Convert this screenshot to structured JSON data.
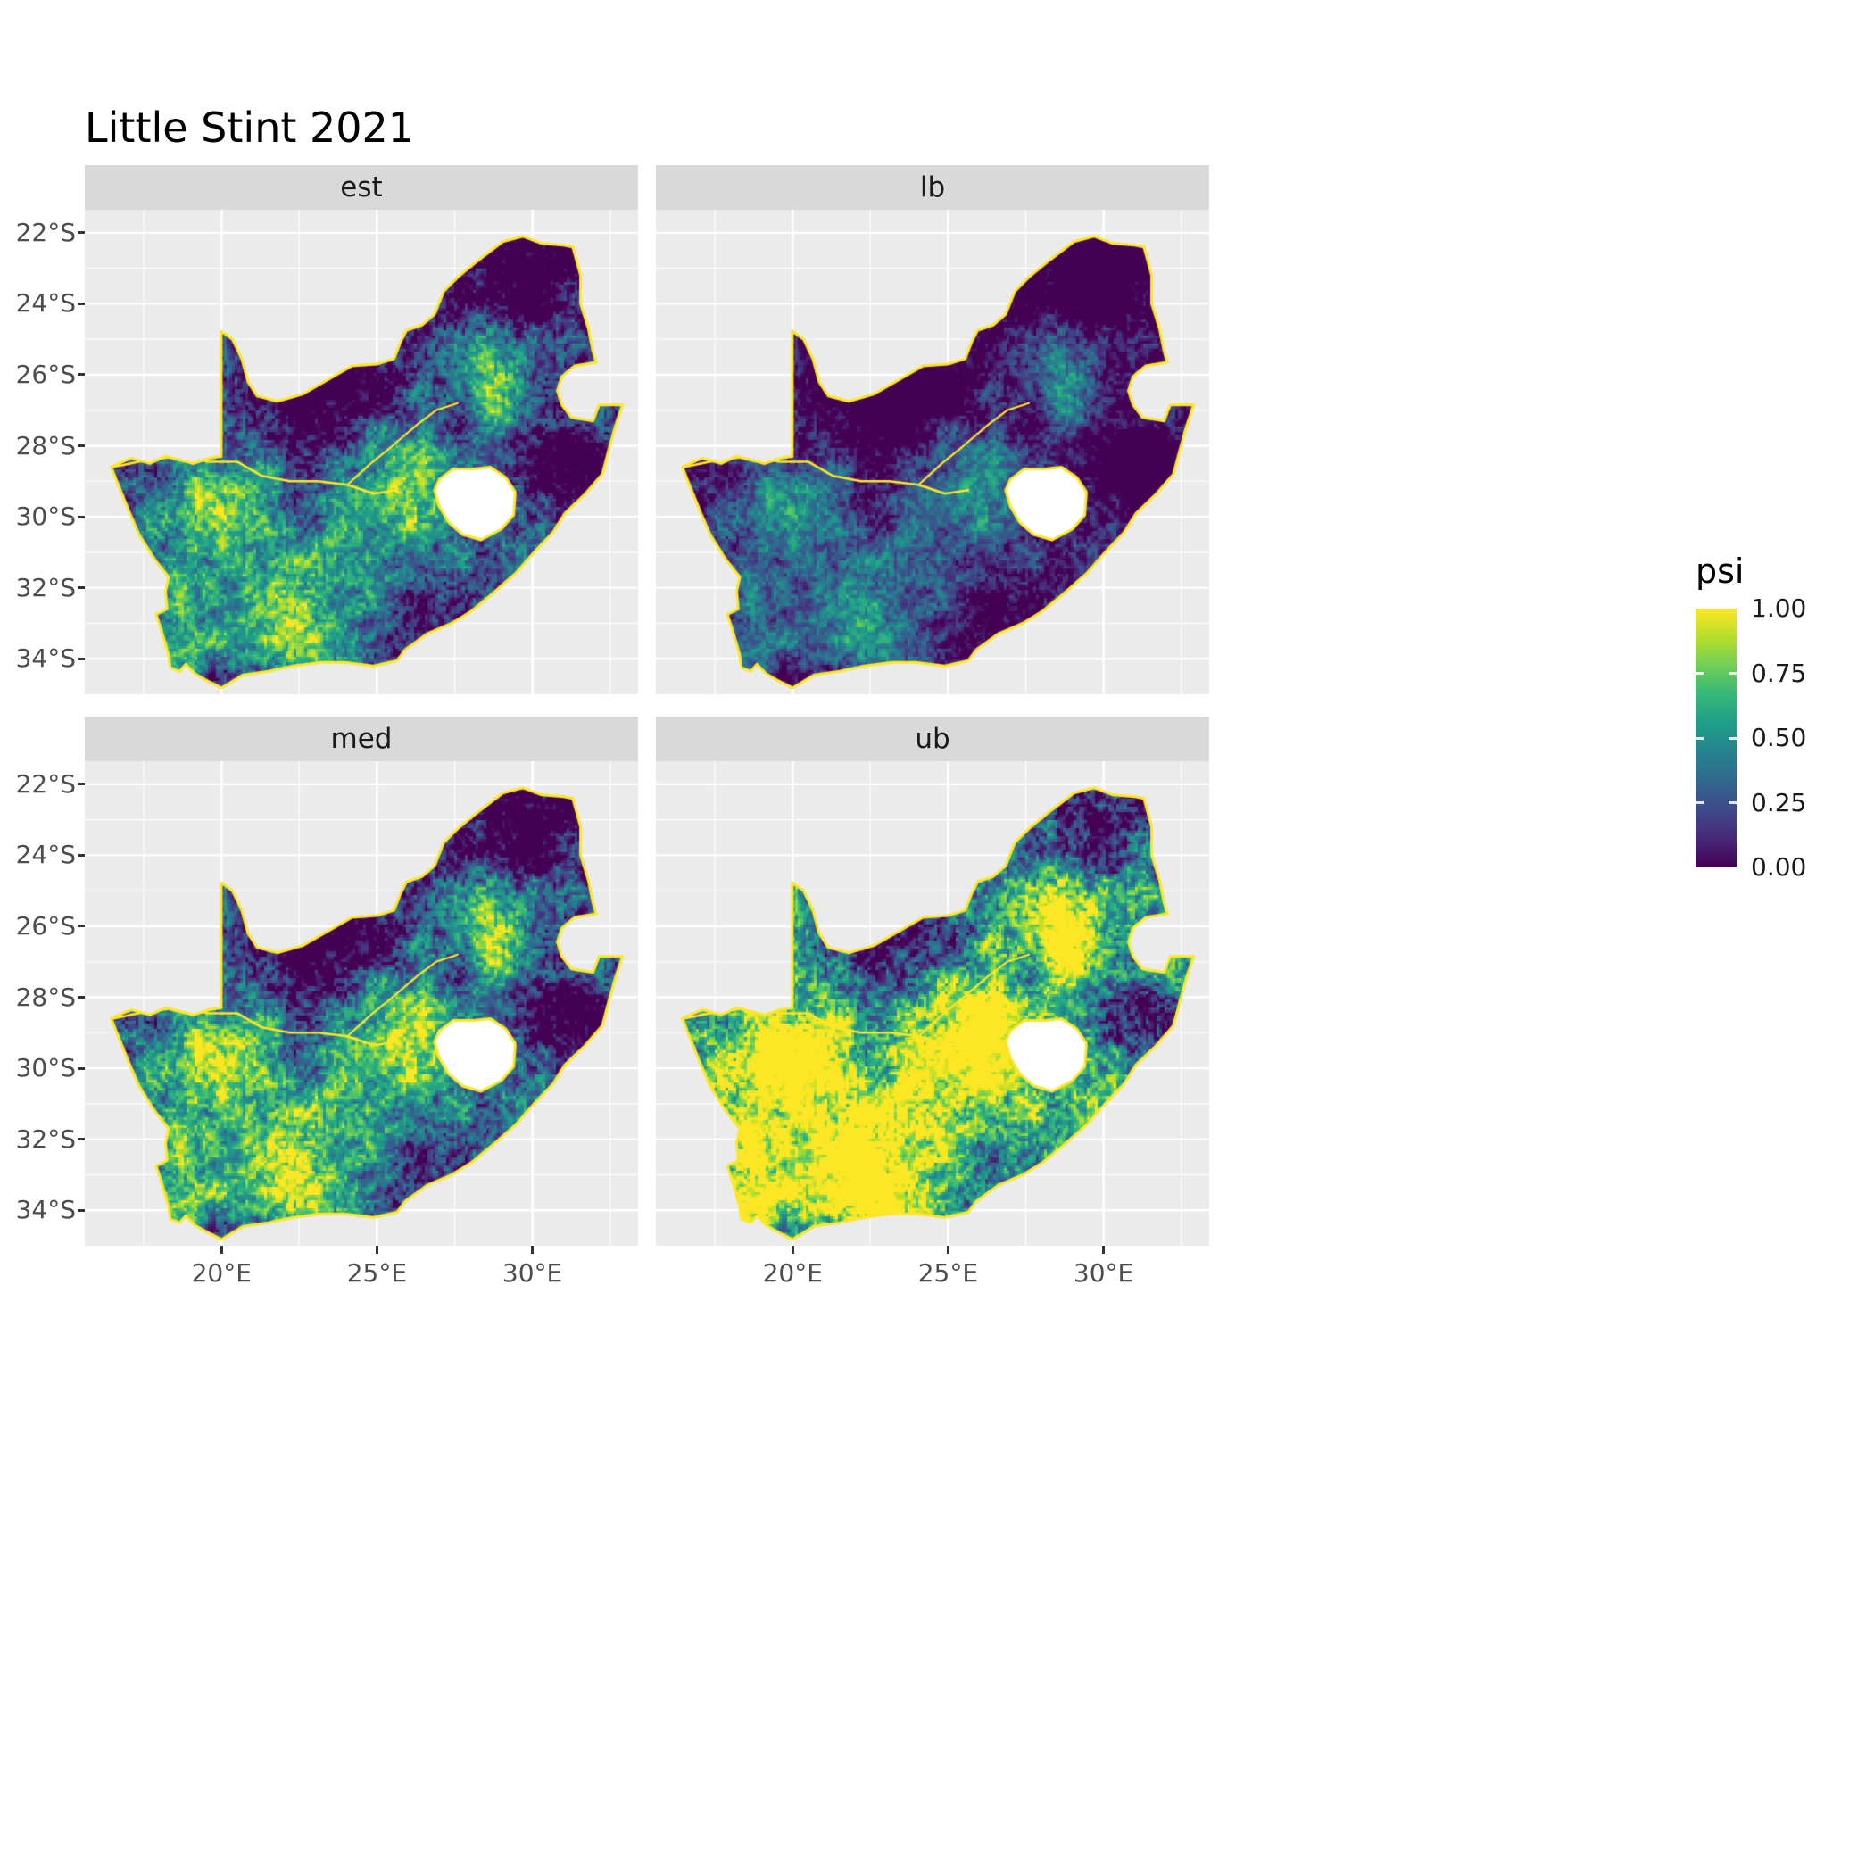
{
  "title": "Little Stint 2021",
  "chart_data": {
    "type": "heatmap",
    "title": "Little Stint 2021",
    "subtitle": "",
    "facets": [
      {
        "key": "est",
        "label": "est"
      },
      {
        "key": "lb",
        "label": "lb"
      },
      {
        "key": "med",
        "label": "med"
      },
      {
        "key": "ub",
        "label": "ub"
      }
    ],
    "x_axis": {
      "ticks": [
        {
          "value": 20,
          "label": "20°E"
        },
        {
          "value": 25,
          "label": "25°E"
        },
        {
          "value": 30,
          "label": "30°E"
        }
      ]
    },
    "y_axis": {
      "ticks": [
        {
          "value": 22,
          "label": "22°S"
        },
        {
          "value": 24,
          "label": "24°S"
        },
        {
          "value": 26,
          "label": "26°S"
        },
        {
          "value": 28,
          "label": "28°S"
        },
        {
          "value": 30,
          "label": "30°S"
        },
        {
          "value": 32,
          "label": "32°S"
        },
        {
          "value": 34,
          "label": "34°S"
        }
      ]
    },
    "lon_range": [
      15.6,
      33.4
    ],
    "lat_range": [
      21.35,
      35.0
    ],
    "minor_x": [
      17.5,
      22.5,
      27.5,
      32.5
    ],
    "minor_y": [
      23,
      25,
      27,
      29,
      31,
      33
    ],
    "legend": {
      "title": "psi",
      "ticks": [
        {
          "value": 1.0,
          "label": "1.00"
        },
        {
          "value": 0.75,
          "label": "0.75"
        },
        {
          "value": 0.5,
          "label": "0.50"
        },
        {
          "value": 0.25,
          "label": "0.25"
        },
        {
          "value": 0.0,
          "label": "0.00"
        }
      ],
      "limits": [
        0,
        1
      ]
    },
    "colormap": {
      "name": "viridis",
      "stops": [
        "#440154",
        "#482878",
        "#3e4a89",
        "#31688e",
        "#26828e",
        "#1f9e89",
        "#35b779",
        "#6ece58",
        "#b5de2b",
        "#fde725"
      ]
    },
    "panel": {
      "bg": "#EBEBEB",
      "grid_color": "#FFFFFF",
      "strip_bg": "#D9D9D9",
      "outline_color": "#FDE725",
      "na_fill": "#FFFFFF"
    },
    "facet_transforms": {
      "est": {
        "gain": 1.0,
        "offset": 0.0
      },
      "lb": {
        "gain": 0.8,
        "offset": -0.13
      },
      "med": {
        "gain": 1.08,
        "offset": 0.05
      },
      "ub": {
        "gain": 1.25,
        "offset": 0.3
      }
    },
    "map": {
      "region": "South Africa (psi occupancy raster, pentad grid)",
      "outline": [
        [
          16.45,
          28.6
        ],
        [
          17.1,
          28.35
        ],
        [
          17.7,
          28.5
        ],
        [
          18.2,
          28.3
        ],
        [
          19.1,
          28.5
        ],
        [
          19.6,
          28.35
        ],
        [
          19.99,
          28.3
        ],
        [
          19.99,
          24.77
        ],
        [
          20.35,
          25.0
        ],
        [
          20.65,
          25.55
        ],
        [
          20.85,
          26.2
        ],
        [
          21.15,
          26.6
        ],
        [
          21.8,
          26.75
        ],
        [
          22.6,
          26.55
        ],
        [
          23.3,
          26.2
        ],
        [
          24.2,
          25.75
        ],
        [
          25.0,
          25.7
        ],
        [
          25.55,
          25.55
        ],
        [
          25.75,
          25.1
        ],
        [
          25.95,
          24.75
        ],
        [
          26.45,
          24.6
        ],
        [
          26.85,
          24.3
        ],
        [
          27.15,
          23.65
        ],
        [
          27.6,
          23.25
        ],
        [
          28.3,
          22.75
        ],
        [
          29.05,
          22.25
        ],
        [
          29.7,
          22.1
        ],
        [
          30.3,
          22.3
        ],
        [
          31.0,
          22.35
        ],
        [
          31.3,
          22.4
        ],
        [
          31.55,
          23.2
        ],
        [
          31.55,
          24.0
        ],
        [
          31.8,
          24.7
        ],
        [
          31.95,
          25.35
        ],
        [
          32.05,
          25.65
        ],
        [
          31.35,
          25.75
        ],
        [
          30.95,
          26.05
        ],
        [
          30.8,
          26.45
        ],
        [
          30.95,
          26.85
        ],
        [
          31.25,
          27.2
        ],
        [
          31.95,
          27.3
        ],
        [
          32.15,
          26.85
        ],
        [
          32.9,
          26.85
        ],
        [
          32.65,
          27.5
        ],
        [
          32.4,
          28.3
        ],
        [
          32.25,
          28.8
        ],
        [
          31.7,
          29.35
        ],
        [
          31.05,
          29.9
        ],
        [
          30.65,
          30.45
        ],
        [
          30.0,
          31.05
        ],
        [
          29.45,
          31.6
        ],
        [
          28.8,
          32.1
        ],
        [
          28.05,
          32.65
        ],
        [
          27.4,
          33.0
        ],
        [
          26.6,
          33.3
        ],
        [
          25.9,
          33.75
        ],
        [
          25.65,
          34.05
        ],
        [
          24.9,
          34.2
        ],
        [
          23.95,
          34.1
        ],
        [
          23.2,
          34.1
        ],
        [
          22.3,
          34.2
        ],
        [
          21.5,
          34.35
        ],
        [
          20.7,
          34.45
        ],
        [
          20.0,
          34.82
        ],
        [
          19.5,
          34.6
        ],
        [
          19.15,
          34.42
        ],
        [
          18.85,
          34.15
        ],
        [
          18.65,
          34.35
        ],
        [
          18.35,
          34.25
        ],
        [
          18.3,
          33.9
        ],
        [
          18.05,
          33.15
        ],
        [
          17.9,
          32.75
        ],
        [
          18.25,
          32.6
        ],
        [
          18.2,
          32.1
        ],
        [
          18.3,
          31.7
        ],
        [
          17.85,
          31.2
        ],
        [
          17.35,
          30.5
        ],
        [
          17.05,
          29.9
        ],
        [
          16.75,
          29.25
        ],
        [
          16.45,
          28.6
        ]
      ],
      "lesotho_hole": [
        [
          27.0,
          28.95
        ],
        [
          27.45,
          28.65
        ],
        [
          28.1,
          28.65
        ],
        [
          28.65,
          28.6
        ],
        [
          29.15,
          28.9
        ],
        [
          29.45,
          29.3
        ],
        [
          29.4,
          29.95
        ],
        [
          29.0,
          30.35
        ],
        [
          28.35,
          30.65
        ],
        [
          27.75,
          30.5
        ],
        [
          27.3,
          30.15
        ],
        [
          27.0,
          29.7
        ],
        [
          26.85,
          29.25
        ]
      ],
      "orange_river": [
        [
          16.5,
          28.6
        ],
        [
          17.6,
          28.4
        ],
        [
          18.6,
          28.3
        ],
        [
          19.6,
          28.45
        ],
        [
          20.5,
          28.45
        ],
        [
          21.3,
          28.85
        ],
        [
          22.2,
          29.0
        ],
        [
          23.1,
          29.0
        ],
        [
          24.05,
          29.1
        ],
        [
          24.9,
          29.35
        ],
        [
          25.65,
          29.25
        ]
      ],
      "vaal_river": [
        [
          24.05,
          29.1
        ],
        [
          24.8,
          28.5
        ],
        [
          25.5,
          28.0
        ],
        [
          26.3,
          27.4
        ],
        [
          26.9,
          27.0
        ],
        [
          27.6,
          26.8
        ]
      ],
      "hotspots": [
        [
          20.2,
          30.2,
          1.0,
          0.5
        ],
        [
          19.6,
          29.2,
          0.6,
          0.32
        ],
        [
          22.2,
          33.0,
          0.95,
          0.45
        ],
        [
          18.6,
          31.9,
          0.6,
          0.3
        ],
        [
          18.9,
          33.6,
          0.5,
          0.35
        ],
        [
          25.5,
          29.3,
          1.4,
          0.3
        ],
        [
          26.5,
          28.5,
          0.8,
          0.3
        ],
        [
          28.8,
          26.05,
          0.85,
          0.5
        ],
        [
          27.7,
          25.1,
          0.7,
          0.25
        ],
        [
          24.8,
          28.4,
          0.8,
          0.25
        ],
        [
          21.5,
          31.3,
          2.2,
          0.26
        ],
        [
          23.8,
          31.8,
          1.2,
          0.2
        ],
        [
          29.3,
          27.2,
          0.6,
          0.2
        ],
        [
          22.8,
          25.7,
          1.7,
          -0.38
        ],
        [
          30.7,
          23.3,
          1.4,
          -0.33
        ],
        [
          30.1,
          28.7,
          1.0,
          -0.28
        ],
        [
          27.6,
          32.3,
          1.0,
          -0.22
        ],
        [
          31.6,
          28.4,
          0.9,
          -0.25
        ],
        [
          29.0,
          23.8,
          1.0,
          -0.2
        ],
        [
          25.0,
          26.5,
          1.2,
          -0.2
        ]
      ]
    }
  }
}
